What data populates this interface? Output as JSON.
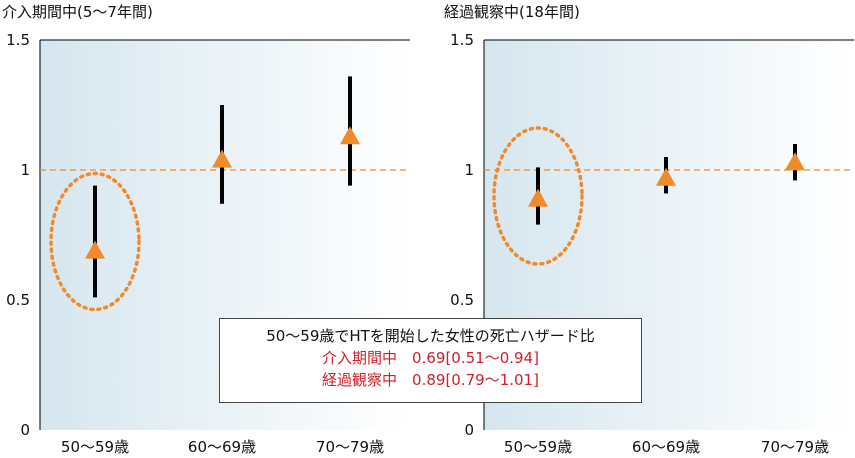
{
  "chart_data": [
    {
      "type": "scatter",
      "title": "介入期間中(5〜7年間)",
      "categories": [
        "50〜59歳",
        "60〜69歳",
        "70〜79歳"
      ],
      "ylim": [
        0,
        1.5
      ],
      "yticks": [
        "0",
        "0.5",
        "1",
        "1.5"
      ],
      "reference_line": 1,
      "points": [
        {
          "category": "50〜59歳",
          "value": 0.69,
          "lower": 0.51,
          "upper": 0.94,
          "highlighted": true
        },
        {
          "category": "60〜69歳",
          "value": 1.04,
          "lower": 0.87,
          "upper": 1.25,
          "highlighted": false
        },
        {
          "category": "70〜79歳",
          "value": 1.13,
          "lower": 0.94,
          "upper": 1.36,
          "highlighted": false
        }
      ]
    },
    {
      "type": "scatter",
      "title": "経過観察中(18年間)",
      "categories": [
        "50〜59歳",
        "60〜69歳",
        "70〜79歳"
      ],
      "ylim": [
        0,
        1.5
      ],
      "yticks": [
        "0",
        "0.5",
        "1",
        "1.5"
      ],
      "reference_line": 1,
      "points": [
        {
          "category": "50〜59歳",
          "value": 0.89,
          "lower": 0.79,
          "upper": 1.01,
          "highlighted": true
        },
        {
          "category": "60〜69歳",
          "value": 0.97,
          "lower": 0.91,
          "upper": 1.05,
          "highlighted": false
        },
        {
          "category": "70〜79歳",
          "value": 1.03,
          "lower": 0.96,
          "upper": 1.1,
          "highlighted": false
        }
      ]
    }
  ],
  "note": {
    "heading": "50〜59歳でHTを開始した女性の死亡ハザード比",
    "line1": "介入期間中　0.69[0.51〜0.94]",
    "line2": "経過観察中　0.89[0.79〜1.01]"
  },
  "colors": {
    "marker": "#f08a2b",
    "refline": "#f08a2b",
    "ci": "#000000",
    "highlight": "#f08a2b",
    "bg_left": "#d6e6ef",
    "bg_right": "#ffffff",
    "note_text": "#d0202a"
  }
}
